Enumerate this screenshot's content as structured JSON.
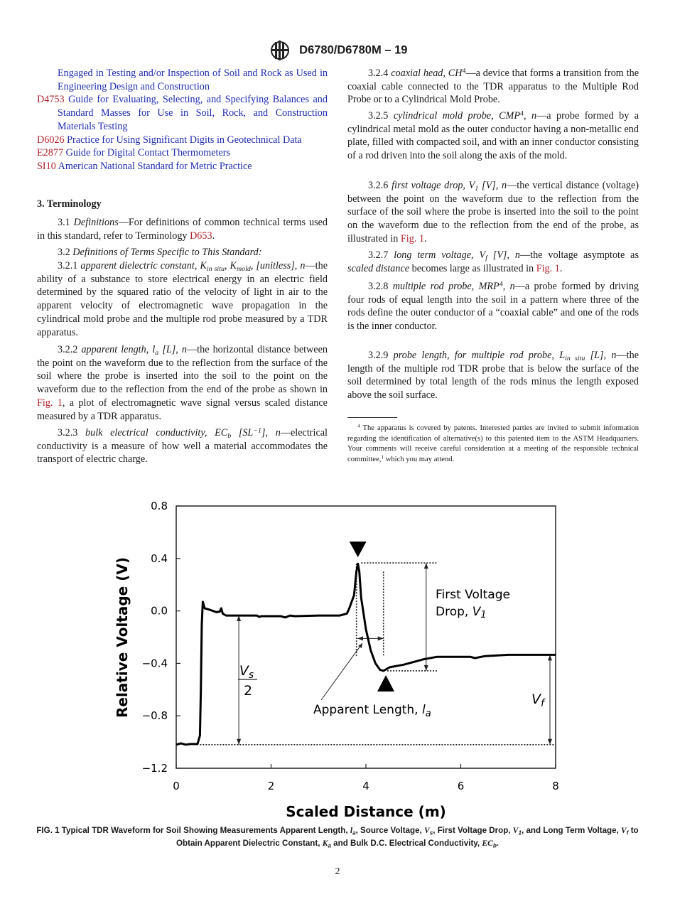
{
  "header": {
    "standard_id": "D6780/D6780M – 19",
    "logo_text": "ASTM"
  },
  "left": {
    "refs": [
      [
        {
          "s": "link",
          "t": "Engaged in Testing and/or Inspection of Soil and Rock as Used in Engineering Design and Construction"
        }
      ],
      [
        {
          "s": "ref-c",
          "t": "D4753"
        },
        {
          "s": "link",
          "t": " Guide for Evaluating, Selecting, and Specifying Balances and Standard Masses for Use in Soil, Rock, and Construction Materials Testing"
        }
      ],
      [
        {
          "s": "ref-c",
          "t": "D6026"
        },
        {
          "s": "link",
          "t": " Practice for Using Significant Digits in Geotechnical Data"
        }
      ],
      [
        {
          "s": "ref-c",
          "t": "E2877"
        },
        {
          "s": "link",
          "t": " Guide for Digital Contact Thermometers"
        }
      ],
      [
        {
          "s": "ref-c",
          "t": "SI10"
        },
        {
          "s": "link",
          "t": " American National Standard for Metric Practice"
        }
      ]
    ],
    "heading": "3.  Terminology",
    "p31": [
      {
        "s": "",
        "t": "3.1  "
      },
      {
        "s": "i",
        "t": "Definitions"
      },
      {
        "s": "",
        "t": "—For definitions of common technical terms used in this standard, refer to Terminology "
      },
      {
        "s": "ref-c",
        "t": "D653"
      },
      {
        "s": "",
        "t": "."
      }
    ],
    "p32": [
      {
        "s": "",
        "t": "3.2  "
      },
      {
        "s": "i",
        "t": "Definitions of Terms Specific to This Standard:"
      }
    ],
    "p321": [
      {
        "s": "",
        "t": "3.2.1  "
      },
      {
        "s": "i",
        "t": "apparent dielectric constant, K"
      },
      {
        "s": "isub",
        "t": "in situ"
      },
      {
        "s": "i",
        "t": ", K"
      },
      {
        "s": "isub",
        "t": "mold"
      },
      {
        "s": "i",
        "t": ", [unitless], n"
      },
      {
        "s": "",
        "t": "—the ability of a substance to store electrical energy in an electric field determined by the squared ratio of the velocity of light in air to the apparent velocity of electromagnetic wave propagation in the cylindrical mold probe and the multiple rod probe measured by a TDR apparatus."
      }
    ],
    "p322": [
      {
        "s": "",
        "t": "3.2.2  "
      },
      {
        "s": "i",
        "t": "apparent length, l"
      },
      {
        "s": "isub",
        "t": "a"
      },
      {
        "s": "i",
        "t": " [L], n"
      },
      {
        "s": "",
        "t": "—the horizontal distance between the point on the waveform due to the reflection from the surface of the soil where the probe is inserted into the soil to the point on the waveform due to the reflection from the end of the probe as shown in "
      },
      {
        "s": "ref-c",
        "t": "Fig. 1"
      },
      {
        "s": "",
        "t": ", a plot of electromagnetic wave signal versus scaled distance measured by a TDR apparatus."
      }
    ],
    "p323": [
      {
        "s": "",
        "t": "3.2.3  "
      },
      {
        "s": "i",
        "t": "bulk electrical conductivity, EC"
      },
      {
        "s": "isub",
        "t": "b"
      },
      {
        "s": "i",
        "t": " [SL"
      },
      {
        "s": "isup",
        "t": "−1"
      },
      {
        "s": "i",
        "t": "], n"
      },
      {
        "s": "",
        "t": "—electrical conductivity is a measure of how well a material accommodates the transport of electric charge."
      }
    ]
  },
  "right": {
    "p324": [
      {
        "s": "",
        "t": "3.2.4  "
      },
      {
        "s": "i",
        "t": "coaxial head, CH"
      },
      {
        "s": "sup",
        "t": "4"
      },
      {
        "s": "",
        "t": "—a device that forms a transition from the coaxial cable connected to the TDR apparatus to the Multiple Rod Probe or to a Cylindrical Mold Probe."
      }
    ],
    "p325": [
      {
        "s": "",
        "t": "3.2.5  "
      },
      {
        "s": "i",
        "t": "cylindrical mold probe, CMP"
      },
      {
        "s": "sup",
        "t": "4"
      },
      {
        "s": "",
        "t": ", "
      },
      {
        "s": "i",
        "t": "n"
      },
      {
        "s": "",
        "t": "—a probe formed by a cylindrical metal mold as the outer conductor having a non-metallic end plate, filled with compacted soil, and with an inner conductor consisting of a rod driven into the soil along the axis of the mold."
      }
    ],
    "p326": [
      {
        "s": "",
        "t": "3.2.6 "
      },
      {
        "s": "i",
        "t": "first voltage drop, V"
      },
      {
        "s": "isub",
        "t": "1"
      },
      {
        "s": "i",
        "t": " [V], n"
      },
      {
        "s": "",
        "t": "—the vertical distance (voltage) between the point on the waveform due to the reflection from the surface of the soil where the probe is inserted into the soil to the point on the waveform due to the reflection from the end of the probe, as illustrated in "
      },
      {
        "s": "ref-c",
        "t": "Fig. 1"
      },
      {
        "s": "",
        "t": "."
      }
    ],
    "p327": [
      {
        "s": "",
        "t": "3.2.7  "
      },
      {
        "s": "i",
        "t": "long term voltage, V"
      },
      {
        "s": "isub",
        "t": "f"
      },
      {
        "s": "i",
        "t": " [V], n"
      },
      {
        "s": "",
        "t": "—the voltage asymptote as "
      },
      {
        "s": "i",
        "t": "scaled distance"
      },
      {
        "s": "",
        "t": " becomes large as illustrated in "
      },
      {
        "s": "ref-c",
        "t": "Fig. 1"
      },
      {
        "s": "",
        "t": "."
      }
    ],
    "p328": [
      {
        "s": "",
        "t": "3.2.8  "
      },
      {
        "s": "i",
        "t": "multiple rod probe, MRP"
      },
      {
        "s": "sup",
        "t": "4"
      },
      {
        "s": "",
        "t": ", "
      },
      {
        "s": "i",
        "t": "n"
      },
      {
        "s": "",
        "t": "—a probe formed by driving four rods of equal length into the soil in a pattern where three of the rods define the outer conductor of a “coaxial cable” and one of the rods is the inner conductor."
      }
    ],
    "p329": [
      {
        "s": "",
        "t": "3.2.9  "
      },
      {
        "s": "i",
        "t": "probe length, for multiple rod probe, L"
      },
      {
        "s": "isub",
        "t": "in situ"
      },
      {
        "s": "i",
        "t": " [L], n"
      },
      {
        "s": "",
        "t": "—the length of the multiple rod TDR probe that is below the surface of the soil determined by total length of the rods minus the length exposed above the soil surface."
      }
    ],
    "footnote": [
      {
        "s": "sup",
        "t": "4"
      },
      {
        "s": "",
        "t": " The apparatus is covered by patents. Interested parties are invited to submit information regarding the identification of alternative(s) to this patented item to the ASTM Headquarters. Your comments will receive careful consideration at a meeting of the responsible technical committee,"
      },
      {
        "s": "sup",
        "t": "1"
      },
      {
        "s": "",
        "t": " which you may attend."
      }
    ]
  },
  "chart_data": {
    "type": "line",
    "xlabel": "Scaled Distance (m)",
    "ylabel": "Relative Voltage (V)",
    "xlim": [
      0,
      8
    ],
    "ylim": [
      -1.2,
      0.8
    ],
    "xticks": [
      "0",
      "2",
      "4",
      "6",
      "8"
    ],
    "yticks": [
      "0.8",
      "0.4",
      "0.0",
      "−0.4",
      "−0.8",
      "−1.2"
    ],
    "grid": false,
    "series": [
      {
        "x": [
          0,
          0.1,
          0.2,
          0.3,
          0.45,
          0.5,
          0.52,
          0.54,
          0.56,
          0.6,
          0.7,
          0.85,
          0.92,
          0.95,
          0.98,
          1.05,
          1.7,
          1.75,
          1.8,
          2.2,
          2.3,
          2.4,
          2.5,
          3.0,
          3.45,
          3.6,
          3.65,
          3.75,
          3.8,
          3.83,
          3.86,
          3.9,
          4.0,
          4.1,
          4.2,
          4.3,
          4.37,
          4.5,
          4.8,
          5.0,
          5.2,
          5.5,
          6.2,
          6.3,
          6.5,
          7.0,
          8.0
        ],
        "y": [
          -1.02,
          -1.01,
          -1.02,
          -1.015,
          -1.015,
          -0.95,
          -0.6,
          -0.1,
          0.07,
          0.02,
          0.01,
          -0.01,
          -0.005,
          0.02,
          -0.02,
          -0.035,
          -0.035,
          -0.045,
          -0.04,
          -0.04,
          -0.05,
          -0.035,
          -0.04,
          -0.035,
          -0.035,
          -0.02,
          0.02,
          0.12,
          0.3,
          0.36,
          0.3,
          0.1,
          -0.14,
          -0.3,
          -0.4,
          -0.45,
          -0.457,
          -0.43,
          -0.41,
          -0.39,
          -0.37,
          -0.35,
          -0.35,
          -0.36,
          -0.345,
          -0.335,
          -0.335
        ]
      }
    ],
    "annotations": {
      "first_voltage_drop": [
        "First Voltage",
        "Drop, ",
        "V",
        "1"
      ],
      "source_voltage": [
        "V",
        "s",
        "2"
      ],
      "long_term_voltage": [
        "V",
        "f"
      ],
      "apparent_length": [
        "Apparent Length, ",
        "l",
        "a"
      ]
    }
  },
  "caption": [
    {
      "s": "",
      "t": "FIG. 1 Typical TDR Waveform for Soil Showing Measurements Apparent Length, "
    },
    {
      "s": "i",
      "t": "l"
    },
    {
      "s": "isub",
      "t": "a"
    },
    {
      "s": "",
      "t": ", Source Voltage, "
    },
    {
      "s": "i",
      "t": "V"
    },
    {
      "s": "isub",
      "t": "s"
    },
    {
      "s": "",
      "t": ", First Voltage Drop, "
    },
    {
      "s": "i",
      "t": "V"
    },
    {
      "s": "isub",
      "t": "1"
    },
    {
      "s": "",
      "t": ", and Long Term Voltage, "
    },
    {
      "s": "i",
      "t": "V"
    },
    {
      "s": "isub",
      "t": "f"
    },
    {
      "s": "",
      "t": " to Obtain Apparent Dielectric Constant, "
    },
    {
      "s": "i",
      "t": "K"
    },
    {
      "s": "isub",
      "t": "a"
    },
    {
      "s": "",
      "t": " and Bulk D.C. Electrical Conductivity, "
    },
    {
      "s": "i",
      "t": "EC"
    },
    {
      "s": "isub",
      "t": "b"
    },
    {
      "s": "",
      "t": "."
    }
  ],
  "page_number": "2"
}
